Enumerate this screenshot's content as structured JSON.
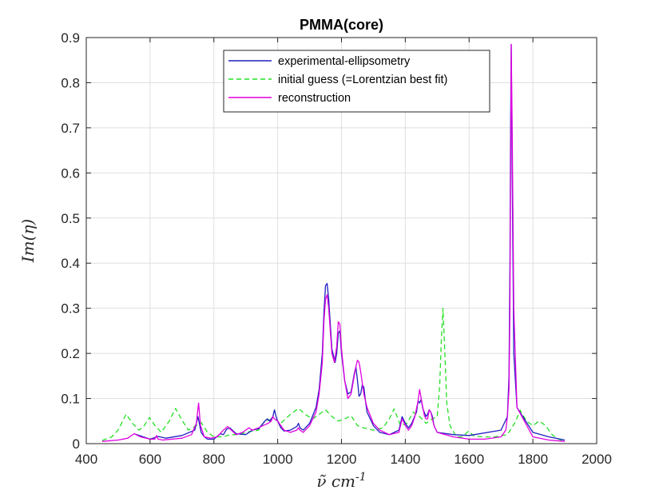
{
  "chart_data": {
    "type": "line",
    "title": "PMMA(core)",
    "xlabel": "ν̃ cm",
    "xlabel_sup": "-1",
    "ylabel": "Im(η)",
    "xlim": [
      400,
      2000
    ],
    "ylim": [
      0,
      0.9
    ],
    "xticks": [
      "400",
      "600",
      "800",
      "1000",
      "1200",
      "1400",
      "1600",
      "1800",
      "2000"
    ],
    "yticks": [
      "0",
      "0.1",
      "0.2",
      "0.3",
      "0.4",
      "0.5",
      "0.6",
      "0.7",
      "0.8",
      "0.9"
    ],
    "grid": true,
    "legend_position": "top-center",
    "series": [
      {
        "name": "experimental-ellipsometry",
        "color": "#1f1fbf",
        "style": "solid",
        "x": [
          550,
          600,
          625,
          650,
          700,
          740,
          750,
          760,
          770,
          780,
          800,
          820,
          830,
          840,
          850,
          870,
          900,
          920,
          940,
          960,
          968,
          975,
          985,
          990,
          995,
          1000,
          1010,
          1020,
          1040,
          1060,
          1065,
          1070,
          1080,
          1100,
          1120,
          1130,
          1140,
          1145,
          1150,
          1155,
          1160,
          1170,
          1180,
          1185,
          1190,
          1195,
          1200,
          1210,
          1220,
          1230,
          1240,
          1245,
          1250,
          1255,
          1260,
          1265,
          1270,
          1275,
          1280,
          1300,
          1320,
          1350,
          1380,
          1385,
          1390,
          1400,
          1410,
          1420,
          1435,
          1440,
          1445,
          1450,
          1455,
          1465,
          1470,
          1475,
          1480,
          1485,
          1490,
          1500,
          1550,
          1600,
          1700,
          1720,
          1725,
          1728,
          1730,
          1732,
          1735,
          1740,
          1750,
          1800,
          1850,
          1900
        ],
        "y": [
          0.022,
          0.01,
          0.016,
          0.012,
          0.018,
          0.03,
          0.06,
          0.025,
          0.015,
          0.01,
          0.01,
          0.022,
          0.02,
          0.032,
          0.035,
          0.022,
          0.02,
          0.03,
          0.033,
          0.05,
          0.055,
          0.05,
          0.06,
          0.075,
          0.06,
          0.05,
          0.035,
          0.028,
          0.03,
          0.038,
          0.045,
          0.035,
          0.03,
          0.045,
          0.08,
          0.12,
          0.2,
          0.29,
          0.35,
          0.355,
          0.32,
          0.21,
          0.18,
          0.2,
          0.245,
          0.25,
          0.2,
          0.14,
          0.11,
          0.115,
          0.155,
          0.17,
          0.14,
          0.105,
          0.11,
          0.13,
          0.125,
          0.095,
          0.07,
          0.04,
          0.025,
          0.02,
          0.03,
          0.045,
          0.06,
          0.045,
          0.035,
          0.045,
          0.07,
          0.095,
          0.09,
          0.098,
          0.078,
          0.06,
          0.065,
          0.075,
          0.07,
          0.06,
          0.04,
          0.025,
          0.02,
          0.018,
          0.03,
          0.06,
          0.15,
          0.4,
          0.7,
          0.885,
          0.6,
          0.2,
          0.08,
          0.025,
          0.015,
          0.008
        ]
      },
      {
        "name": "initial guess (=Lorentzian best fit)",
        "color": "#22e022",
        "style": "dashed",
        "x": [
          450,
          480,
          500,
          525,
          545,
          565,
          580,
          598,
          615,
          635,
          660,
          680,
          700,
          720,
          745,
          760,
          780,
          800,
          830,
          850,
          880,
          900,
          940,
          960,
          990,
          1010,
          1040,
          1065,
          1090,
          1110,
          1130,
          1150,
          1170,
          1190,
          1210,
          1230,
          1250,
          1270,
          1300,
          1330,
          1350,
          1365,
          1385,
          1405,
          1425,
          1445,
          1465,
          1485,
          1500,
          1508,
          1513,
          1518,
          1523,
          1530,
          1540,
          1560,
          1580,
          1598,
          1615,
          1640,
          1680,
          1720,
          1745,
          1760,
          1780,
          1800,
          1820,
          1840,
          1860,
          1880,
          1900
        ],
        "y": [
          0.007,
          0.015,
          0.03,
          0.065,
          0.045,
          0.03,
          0.038,
          0.058,
          0.04,
          0.025,
          0.05,
          0.078,
          0.052,
          0.03,
          0.04,
          0.047,
          0.025,
          0.015,
          0.015,
          0.02,
          0.02,
          0.025,
          0.03,
          0.05,
          0.055,
          0.045,
          0.065,
          0.078,
          0.063,
          0.055,
          0.065,
          0.075,
          0.06,
          0.05,
          0.055,
          0.062,
          0.04,
          0.035,
          0.03,
          0.035,
          0.055,
          0.077,
          0.04,
          0.045,
          0.07,
          0.06,
          0.045,
          0.055,
          0.06,
          0.13,
          0.23,
          0.3,
          0.22,
          0.09,
          0.04,
          0.015,
          0.015,
          0.028,
          0.017,
          0.015,
          0.015,
          0.02,
          0.048,
          0.074,
          0.05,
          0.04,
          0.05,
          0.04,
          0.02,
          0.01,
          0.005
        ]
      },
      {
        "name": "reconstruction",
        "color": "#e000e0",
        "style": "solid",
        "x": [
          450,
          500,
          530,
          550,
          570,
          600,
          615,
          620,
          625,
          640,
          700,
          730,
          745,
          752,
          758,
          770,
          790,
          810,
          830,
          843,
          850,
          870,
          890,
          910,
          920,
          940,
          960,
          970,
          980,
          985,
          990,
          1000,
          1010,
          1020,
          1040,
          1060,
          1065,
          1070,
          1080,
          1100,
          1120,
          1130,
          1140,
          1145,
          1150,
          1155,
          1160,
          1170,
          1178,
          1185,
          1190,
          1195,
          1200,
          1210,
          1220,
          1230,
          1240,
          1245,
          1250,
          1255,
          1260,
          1270,
          1280,
          1300,
          1320,
          1350,
          1380,
          1385,
          1390,
          1400,
          1410,
          1420,
          1430,
          1440,
          1445,
          1450,
          1455,
          1460,
          1465,
          1470,
          1475,
          1480,
          1485,
          1490,
          1500,
          1550,
          1600,
          1650,
          1700,
          1715,
          1720,
          1725,
          1728,
          1730,
          1732,
          1735,
          1740,
          1750,
          1800,
          1850,
          1900
        ],
        "y": [
          0.005,
          0.008,
          0.012,
          0.022,
          0.015,
          0.01,
          0.01,
          0.018,
          0.01,
          0.008,
          0.012,
          0.02,
          0.045,
          0.09,
          0.04,
          0.015,
          0.012,
          0.015,
          0.03,
          0.038,
          0.033,
          0.02,
          0.025,
          0.035,
          0.03,
          0.035,
          0.042,
          0.045,
          0.05,
          0.06,
          0.055,
          0.05,
          0.04,
          0.03,
          0.025,
          0.03,
          0.035,
          0.03,
          0.025,
          0.04,
          0.07,
          0.11,
          0.18,
          0.27,
          0.32,
          0.33,
          0.3,
          0.2,
          0.18,
          0.215,
          0.27,
          0.265,
          0.21,
          0.14,
          0.1,
          0.11,
          0.15,
          0.17,
          0.185,
          0.18,
          0.16,
          0.11,
          0.08,
          0.045,
          0.03,
          0.02,
          0.025,
          0.04,
          0.055,
          0.04,
          0.03,
          0.04,
          0.06,
          0.095,
          0.12,
          0.1,
          0.08,
          0.062,
          0.055,
          0.055,
          0.075,
          0.07,
          0.055,
          0.04,
          0.025,
          0.015,
          0.01,
          0.01,
          0.015,
          0.03,
          0.06,
          0.12,
          0.3,
          0.6,
          0.885,
          0.7,
          0.3,
          0.08,
          0.015,
          0.008,
          0.005
        ]
      }
    ]
  }
}
